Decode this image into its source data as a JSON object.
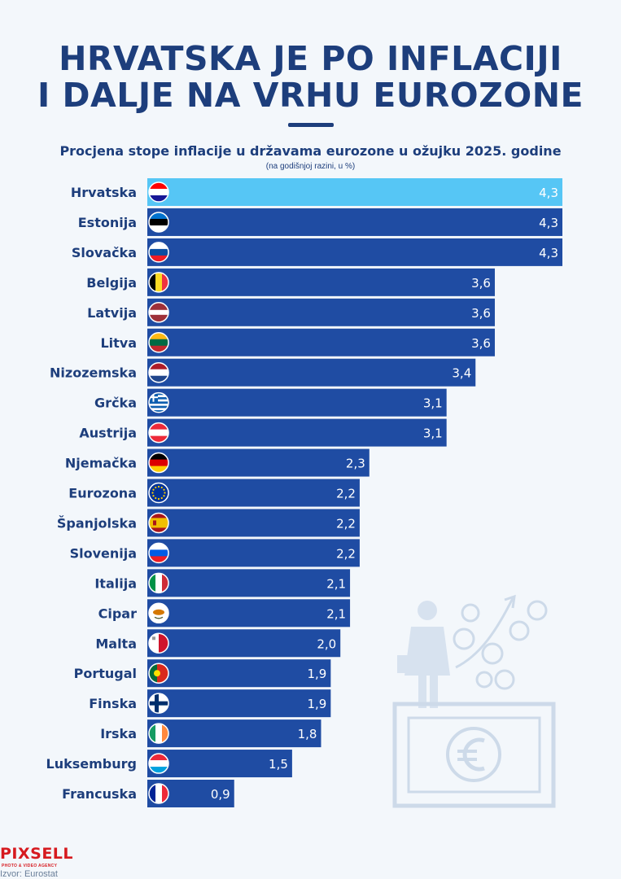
{
  "header": {
    "title_line1": "HRVATSKA JE PO INFLACIJI",
    "title_line2": "I DALJE NA VRHU EUROZONE"
  },
  "chart_data": {
    "type": "bar",
    "orientation": "horizontal",
    "title": "Procjena stope inflacije u državama eurozone u ožujku 2025. godine",
    "subtitle": "(na godišnjoj razini, u %)",
    "categories": [
      "Hrvatska",
      "Estonija",
      "Slovačka",
      "Belgija",
      "Latvija",
      "Litva",
      "Nizozemska",
      "Grčka",
      "Austrija",
      "Njemačka",
      "Eurozona",
      "Španjolska",
      "Slovenija",
      "Italija",
      "Cipar",
      "Malta",
      "Portugal",
      "Finska",
      "Irska",
      "Luksemburg",
      "Francuska"
    ],
    "values": [
      4.3,
      4.3,
      4.3,
      3.6,
      3.6,
      3.6,
      3.4,
      3.1,
      3.1,
      2.3,
      2.2,
      2.2,
      2.2,
      2.1,
      2.1,
      2.0,
      1.9,
      1.9,
      1.8,
      1.5,
      0.9
    ],
    "value_labels": [
      "4,3",
      "4,3",
      "4,3",
      "3,6",
      "3,6",
      "3,6",
      "3,4",
      "3,1",
      "3,1",
      "2,3",
      "2,2",
      "2,2",
      "2,2",
      "2,1",
      "2,1",
      "2,0",
      "1,9",
      "1,9",
      "1,8",
      "1,5",
      "0,9"
    ],
    "flag_icons": [
      "flag-croatia-icon",
      "flag-estonia-icon",
      "flag-slovakia-icon",
      "flag-belgium-icon",
      "flag-latvia-icon",
      "flag-lithuania-icon",
      "flag-netherlands-icon",
      "flag-greece-icon",
      "flag-austria-icon",
      "flag-germany-icon",
      "flag-eu-icon",
      "flag-spain-icon",
      "flag-slovenia-icon",
      "flag-italy-icon",
      "flag-cyprus-icon",
      "flag-malta-icon",
      "flag-portugal-icon",
      "flag-finland-icon",
      "flag-ireland-icon",
      "flag-luxembourg-icon",
      "flag-france-icon"
    ],
    "highlight_category": "Hrvatska",
    "xlim": [
      0,
      4.3
    ],
    "grid": false,
    "legend": "none",
    "colors": {
      "bar": "#1f4ca3",
      "highlight": "#56c6f5",
      "label": "#1d3e7c",
      "value_text": "#ffffff"
    }
  },
  "footer": {
    "logo": "PIXSELL",
    "logo_sub": "PHOTO & VIDEO AGENCY",
    "source": "Izvor: Eurostat"
  }
}
